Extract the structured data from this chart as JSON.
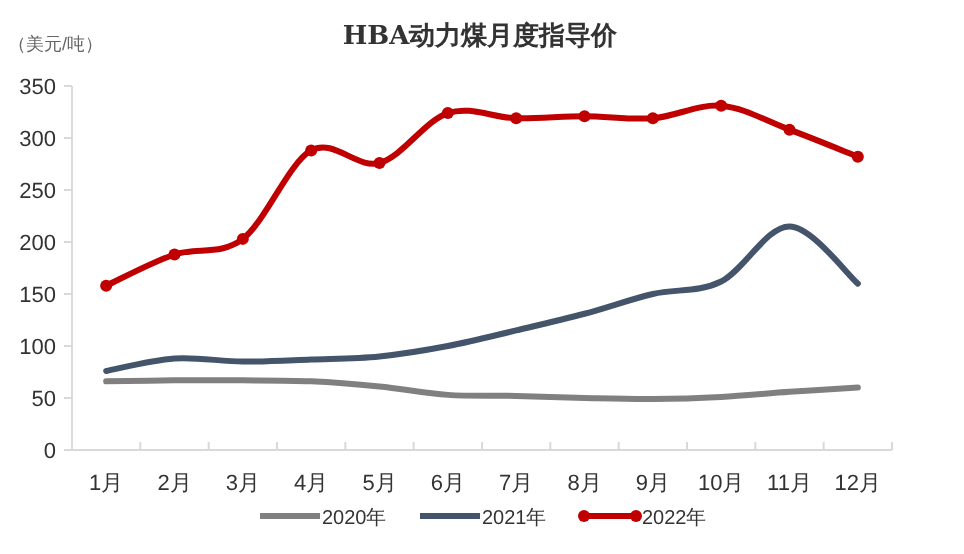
{
  "chart_data": {
    "type": "line",
    "title": "HBA动力煤月度指导价",
    "ylabel": "（美元/吨）",
    "categories": [
      "1月",
      "2月",
      "3月",
      "4月",
      "5月",
      "6月",
      "7月",
      "8月",
      "9月",
      "10月",
      "11月",
      "12月"
    ],
    "series": [
      {
        "name": "2020年",
        "color": "#808080",
        "marker": "none",
        "values": [
          66,
          67,
          67,
          66,
          61,
          53,
          52,
          50,
          49,
          51,
          56,
          60
        ]
      },
      {
        "name": "2021年",
        "color": "#44546a",
        "marker": "none",
        "values": [
          76,
          88,
          85,
          87,
          90,
          100,
          115,
          131,
          150,
          162,
          215,
          160
        ]
      },
      {
        "name": "2022年",
        "color": "#c00000",
        "marker": "circle",
        "values": [
          158,
          188,
          203,
          288,
          276,
          324,
          319,
          321,
          319,
          331,
          308,
          282
        ]
      }
    ],
    "ylim": [
      0,
      350
    ],
    "yticks": [
      0,
      50,
      100,
      150,
      200,
      250,
      300,
      350
    ],
    "grid": false,
    "legend": "bottom"
  }
}
